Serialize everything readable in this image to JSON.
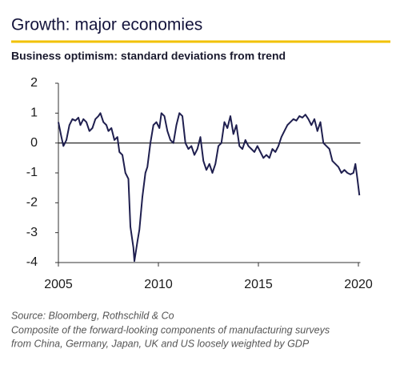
{
  "chart_data": {
    "type": "line",
    "title": "Growth: major economies",
    "subtitle": "Business optimism: standard deviations from trend",
    "source": "Source: Bloomberg, Rothschild & Co",
    "notes": [
      "Composite of the forward-looking components of manufacturing surveys",
      "from China, Germany, Japan, UK and US loosely weighted by GDP"
    ],
    "x": [
      2005.0,
      2005.15,
      2005.25,
      2005.4,
      2005.55,
      2005.7,
      2005.85,
      2006.0,
      2006.1,
      2006.25,
      2006.4,
      2006.55,
      2006.7,
      2006.85,
      2007.0,
      2007.1,
      2007.25,
      2007.4,
      2007.5,
      2007.65,
      2007.8,
      2007.95,
      2008.05,
      2008.2,
      2008.35,
      2008.5,
      2008.6,
      2008.75,
      2008.8,
      2008.95,
      2009.05,
      2009.2,
      2009.35,
      2009.45,
      2009.6,
      2009.75,
      2009.9,
      2010.05,
      2010.15,
      2010.3,
      2010.45,
      2010.6,
      2010.75,
      2010.9,
      2011.05,
      2011.2,
      2011.35,
      2011.5,
      2011.65,
      2011.8,
      2011.95,
      2012.1,
      2012.25,
      2012.4,
      2012.55,
      2012.7,
      2012.85,
      2013.0,
      2013.15,
      2013.3,
      2013.45,
      2013.6,
      2013.75,
      2013.9,
      2014.05,
      2014.2,
      2014.35,
      2014.5,
      2014.65,
      2014.8,
      2014.95,
      2015.1,
      2015.25,
      2015.4,
      2015.55,
      2015.7,
      2015.85,
      2016.0,
      2016.15,
      2016.3,
      2016.45,
      2016.6,
      2016.75,
      2016.9,
      2017.05,
      2017.2,
      2017.35,
      2017.5,
      2017.65,
      2017.8,
      2017.95,
      2018.1,
      2018.25,
      2018.4,
      2018.55,
      2018.7,
      2018.85,
      2019.0,
      2019.15,
      2019.3,
      2019.45,
      2019.6,
      2019.75,
      2019.85,
      2019.95,
      2020.05
    ],
    "series": [
      {
        "color": "#1f1f4f",
        "values": [
          0.7,
          0.2,
          -0.1,
          0.1,
          0.6,
          0.8,
          0.75,
          0.85,
          0.6,
          0.8,
          0.7,
          0.4,
          0.5,
          0.8,
          0.9,
          1.0,
          0.7,
          0.6,
          0.4,
          0.5,
          0.1,
          0.2,
          -0.3,
          -0.4,
          -1.0,
          -1.2,
          -2.8,
          -3.5,
          -3.95,
          -3.3,
          -2.9,
          -1.8,
          -1.0,
          -0.8,
          0.0,
          0.6,
          0.7,
          0.5,
          1.0,
          0.9,
          0.4,
          0.1,
          0.0,
          0.6,
          1.0,
          0.9,
          0.0,
          -0.2,
          -0.1,
          -0.4,
          -0.2,
          0.2,
          -0.6,
          -0.9,
          -0.7,
          -1.0,
          -0.7,
          -0.1,
          0.0,
          0.7,
          0.5,
          0.9,
          0.3,
          0.6,
          -0.1,
          -0.2,
          0.1,
          -0.1,
          -0.2,
          -0.3,
          -0.1,
          -0.3,
          -0.5,
          -0.4,
          -0.5,
          -0.2,
          -0.3,
          -0.1,
          0.2,
          0.4,
          0.6,
          0.7,
          0.8,
          0.75,
          0.9,
          0.85,
          0.95,
          0.8,
          0.6,
          0.8,
          0.4,
          0.7,
          0.0,
          -0.1,
          -0.2,
          -0.6,
          -0.7,
          -0.8,
          -1.0,
          -0.9,
          -1.0,
          -1.05,
          -1.0,
          -0.7,
          -1.2,
          -1.75
        ]
      }
    ],
    "xlim": [
      2005,
      2020.1
    ],
    "xticks": [
      2005,
      2010,
      2015,
      2020
    ],
    "ylim": [
      -4,
      2
    ],
    "yticks": [
      2,
      1,
      0,
      -1,
      -2,
      -3,
      -4
    ],
    "zero_line": true,
    "accent_color": "#f2c200"
  }
}
